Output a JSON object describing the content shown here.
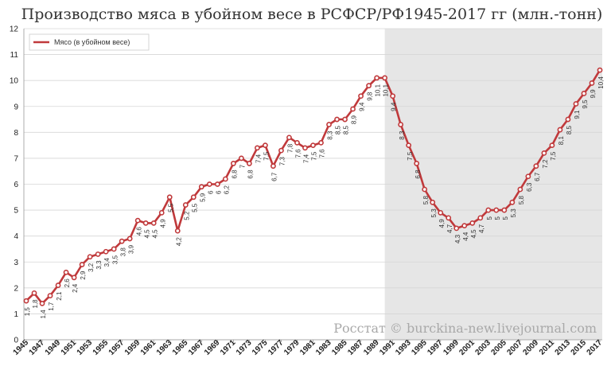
{
  "chart_data": {
    "type": "line",
    "title": "Производство мяса в убойном весе в РСФСР/РФ1945-2017 гг (млн.-тонн)",
    "xlabel": "",
    "ylabel": "",
    "ylim": [
      0,
      12
    ],
    "yticks": [
      "0",
      "1",
      "2",
      "3",
      "4",
      "5",
      "6",
      "7",
      "8",
      "9",
      "10",
      "11",
      "12"
    ],
    "x": [
      1945,
      1946,
      1947,
      1948,
      1949,
      1950,
      1951,
      1952,
      1953,
      1954,
      1955,
      1956,
      1957,
      1958,
      1959,
      1960,
      1961,
      1962,
      1963,
      1964,
      1965,
      1966,
      1967,
      1968,
      1969,
      1970,
      1971,
      1972,
      1973,
      1974,
      1975,
      1976,
      1977,
      1978,
      1979,
      1980,
      1981,
      1982,
      1983,
      1984,
      1985,
      1986,
      1987,
      1988,
      1989,
      1990,
      1991,
      1992,
      1993,
      1994,
      1995,
      1996,
      1997,
      1998,
      1999,
      2000,
      2001,
      2002,
      2003,
      2004,
      2005,
      2006,
      2007,
      2008,
      2009,
      2010,
      2011,
      2012,
      2013,
      2014,
      2015,
      2016,
      2017
    ],
    "xtick_labels": [
      "1945",
      "1947",
      "1949",
      "1951",
      "1953",
      "1955",
      "1957",
      "1959",
      "1961",
      "1963",
      "1965",
      "1967",
      "1969",
      "1971",
      "1973",
      "1975",
      "1977",
      "1979",
      "1981",
      "1983",
      "1985",
      "1987",
      "1989",
      "1991",
      "1993",
      "1995",
      "1997",
      "1999",
      "2001",
      "2003",
      "2005",
      "2007",
      "2009",
      "2011",
      "2013",
      "2015",
      "2017"
    ],
    "series": [
      {
        "name": "Мясо (в убойном весе)",
        "color": "#c0393b",
        "values": [
          1.5,
          1.8,
          1.4,
          1.7,
          2.1,
          2.6,
          2.4,
          2.9,
          3.2,
          3.3,
          3.4,
          3.5,
          3.8,
          3.9,
          4.6,
          4.5,
          4.5,
          4.9,
          5.5,
          4.2,
          5.2,
          5.5,
          5.9,
          6,
          6,
          6.2,
          6.8,
          7,
          6.8,
          7.4,
          7.5,
          6.7,
          7.3,
          7.8,
          7.6,
          7.4,
          7.5,
          7.6,
          8.3,
          8.5,
          8.5,
          8.9,
          9.4,
          9.8,
          10.1,
          10.1,
          9.4,
          8.3,
          7.5,
          6.8,
          5.8,
          5.3,
          4.9,
          4.7,
          4.3,
          4.4,
          4.5,
          4.7,
          5,
          5,
          5,
          5.3,
          5.8,
          6.3,
          6.7,
          7.2,
          7.5,
          8.1,
          8.5,
          9.1,
          9.5,
          9.9,
          10.4
        ],
        "labels": [
          "1,5",
          "1,8",
          "1,4",
          "1,7",
          "2,1",
          "2,6",
          "2,4",
          "2,9",
          "3,2",
          "3,3",
          "3,4",
          "3,5",
          "3,8",
          "3,9",
          "4,6",
          "4,5",
          "4,5",
          "4,9",
          "5,5",
          "4,2",
          "5,2",
          "5,5",
          "5,9",
          "6",
          "6",
          "6,2",
          "6,8",
          "7",
          "6,8",
          "7,4",
          "7,5",
          "6,7",
          "7,3",
          "7,8",
          "7,6",
          "7,4",
          "7,5",
          "7,6",
          "8,3",
          "8,5",
          "8,5",
          "8,9",
          "9,4",
          "9,8",
          "10,1",
          "10,1",
          "9,4",
          "8,3",
          "7,5",
          "6,8",
          "5,8",
          "5,3",
          "4,9",
          "4,7",
          "4,3",
          "4,4",
          "4,5",
          "4,7",
          "5",
          "5",
          "5",
          "5,3",
          "5,8",
          "6,3",
          "6,7",
          "7,2",
          "7,5",
          "8,1",
          "8,5",
          "9,1",
          "9,5",
          "9,9",
          "10,4"
        ]
      }
    ],
    "shaded_region": {
      "from": 1990,
      "to": 2017,
      "color": "#e6e6e6"
    },
    "grid": true,
    "legend_position": "top-left"
  },
  "watermark": "Росстат © burckina-new.livejournal.com"
}
